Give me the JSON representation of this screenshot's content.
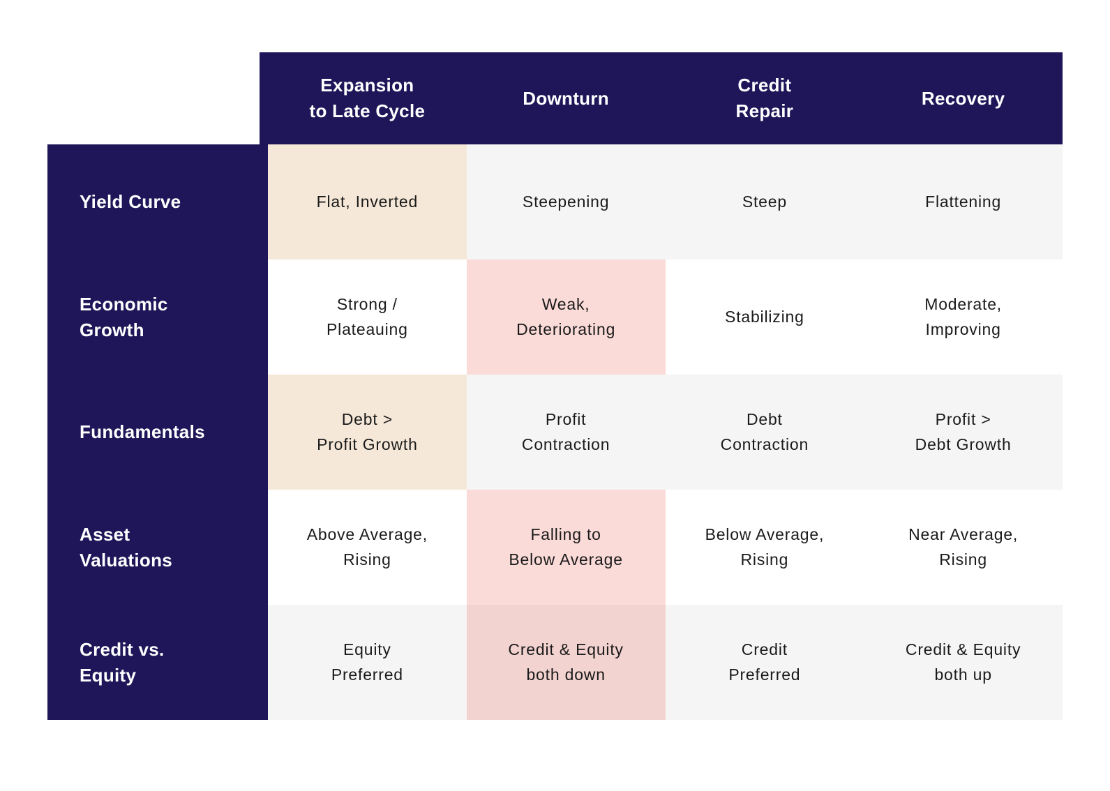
{
  "palette": {
    "navy": "#1e1659",
    "tan": "#f5e8d8",
    "pink": "#fadbd8",
    "pink_dark": "#f3d3d0",
    "gray": "#f6f5f5",
    "white": "#ffffff",
    "header_text": "#ffffff",
    "cell_text": "#1a1a1a"
  },
  "table": {
    "columns": [
      {
        "label": "Expansion\nto Late Cycle"
      },
      {
        "label": "Downturn"
      },
      {
        "label": "Credit\nRepair"
      },
      {
        "label": "Recovery"
      }
    ],
    "rows": [
      {
        "header": "Yield Curve",
        "cells": [
          {
            "text": "Flat, Inverted",
            "bg": "tan"
          },
          {
            "text": "Steepening",
            "bg": "gray"
          },
          {
            "text": "Steep",
            "bg": "gray"
          },
          {
            "text": "Flattening",
            "bg": "gray"
          }
        ]
      },
      {
        "header": "Economic\nGrowth",
        "cells": [
          {
            "text": "Strong /\nPlateauing",
            "bg": "white"
          },
          {
            "text": "Weak,\nDeteriorating",
            "bg": "pink"
          },
          {
            "text": "Stabilizing",
            "bg": "white"
          },
          {
            "text": "Moderate,\nImproving",
            "bg": "white"
          }
        ]
      },
      {
        "header": "Fundamentals",
        "cells": [
          {
            "text": "Debt >\nProfit Growth",
            "bg": "tan"
          },
          {
            "text": "Profit\nContraction",
            "bg": "gray"
          },
          {
            "text": "Debt\nContraction",
            "bg": "gray"
          },
          {
            "text": "Profit >\nDebt Growth",
            "bg": "gray"
          }
        ]
      },
      {
        "header": "Asset\nValuations",
        "cells": [
          {
            "text": "Above Average,\nRising",
            "bg": "white"
          },
          {
            "text": "Falling to\nBelow Average",
            "bg": "pink"
          },
          {
            "text": "Below Average,\nRising",
            "bg": "white"
          },
          {
            "text": "Near Average,\nRising",
            "bg": "white"
          }
        ]
      },
      {
        "header": "Credit vs.\nEquity",
        "cells": [
          {
            "text": "Equity\nPreferred",
            "bg": "gray"
          },
          {
            "text": "Credit & Equity\nboth down",
            "bg": "pink_dark"
          },
          {
            "text": "Credit\nPreferred",
            "bg": "gray"
          },
          {
            "text": "Credit & Equity\nboth up",
            "bg": "gray"
          }
        ]
      }
    ]
  },
  "chart_data": {
    "type": "table",
    "title": "",
    "columns": [
      "Expansion to Late Cycle",
      "Downturn",
      "Credit Repair",
      "Recovery"
    ],
    "row_headers": [
      "Yield Curve",
      "Economic Growth",
      "Fundamentals",
      "Asset Valuations",
      "Credit vs. Equity"
    ],
    "cells": [
      [
        "Flat, Inverted",
        "Steepening",
        "Steep",
        "Flattening"
      ],
      [
        "Strong / Plateauing",
        "Weak, Deteriorating",
        "Stabilizing",
        "Moderate, Improving"
      ],
      [
        "Debt > Profit Growth",
        "Profit Contraction",
        "Debt Contraction",
        "Profit > Debt Growth"
      ],
      [
        "Above Average, Rising",
        "Falling to Below Average",
        "Below Average, Rising",
        "Near Average, Rising"
      ],
      [
        "Equity Preferred",
        "Credit & Equity both down",
        "Credit Preferred",
        "Credit & Equity both up"
      ]
    ],
    "highlights": {
      "tan_cells": [
        [
          0,
          0
        ],
        [
          2,
          0
        ]
      ],
      "pink_cells": [
        [
          1,
          1
        ],
        [
          3,
          1
        ]
      ],
      "dark_pink_cells": [
        [
          4,
          1
        ]
      ]
    },
    "legend_position": "none",
    "grid": false
  }
}
